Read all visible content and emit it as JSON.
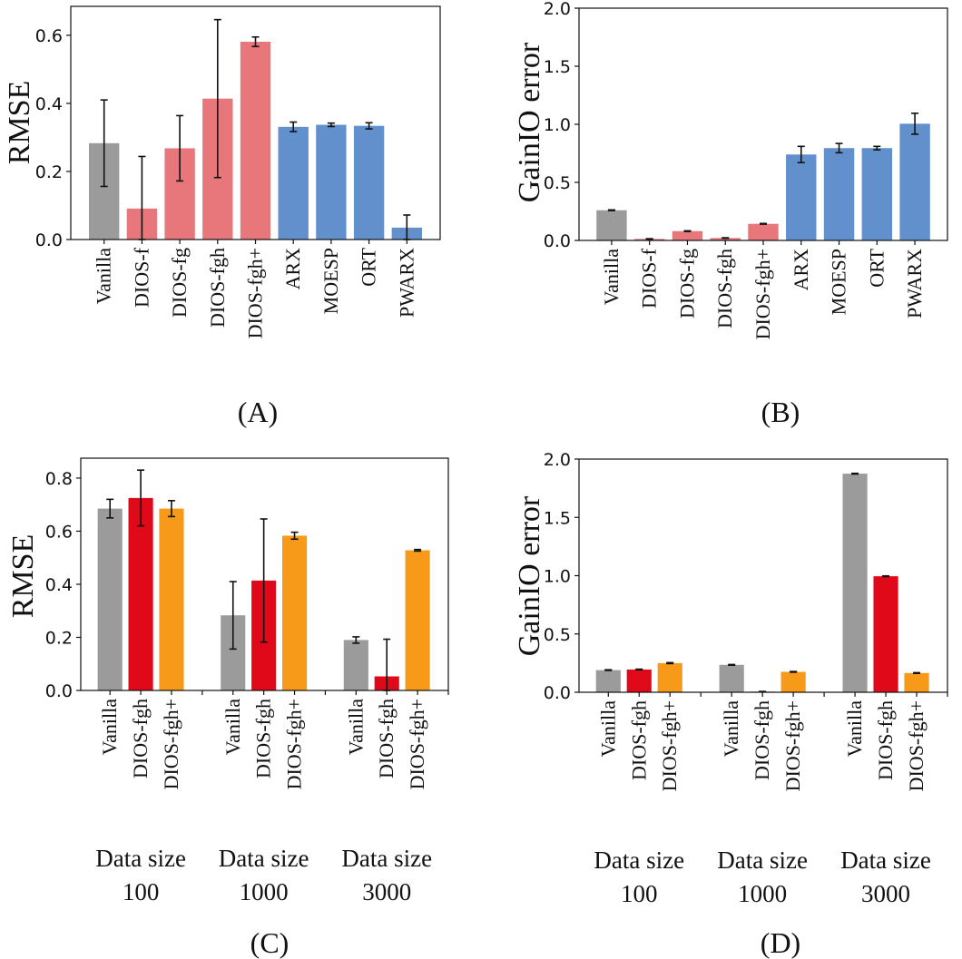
{
  "colors": {
    "vanilla": "#9b9b9b",
    "dios_light": "#e8777c",
    "baseline": "#6190cc",
    "dios_fgh": "#e0091a",
    "dios_fgh_plus": "#f79a1a"
  },
  "chart_data": [
    {
      "type": "bar",
      "panel_label": "(A)",
      "ylabel": "RMSE",
      "ylim": [
        0,
        0.685
      ],
      "yticks": [
        "0.0",
        "0.2",
        "0.4",
        "0.6"
      ],
      "categories": [
        "Vanilla",
        "DIOS-f",
        "DIOS-fg",
        "DIOS-fgh",
        "DIOS-fgh+",
        "ARX",
        "MOESP",
        "ORT",
        "PWARX"
      ],
      "values": [
        0.283,
        0.091,
        0.268,
        0.414,
        0.581,
        0.331,
        0.337,
        0.334,
        0.035
      ],
      "errors": [
        0.127,
        0.153,
        0.096,
        0.232,
        0.014,
        0.014,
        0.005,
        0.009,
        0.037
      ],
      "bar_colors": [
        "vanilla",
        "dios_light",
        "dios_light",
        "dios_light",
        "dios_light",
        "baseline",
        "baseline",
        "baseline",
        "baseline"
      ],
      "grid": false
    },
    {
      "type": "bar",
      "panel_label": "(B)",
      "ylabel": "GainIO error",
      "ylim": [
        0,
        2.0
      ],
      "yticks": [
        "0.0",
        "0.5",
        "1.0",
        "1.5",
        "2.0"
      ],
      "categories": [
        "Vanilla",
        "DIOS-f",
        "DIOS-fg",
        "DIOS-fgh",
        "DIOS-fgh+",
        "ARX",
        "MOESP",
        "ORT",
        "PWARX"
      ],
      "values": [
        0.26,
        0.013,
        0.08,
        0.021,
        0.143,
        0.74,
        0.795,
        0.795,
        1.005
      ],
      "errors": [
        0.003,
        0.002,
        0.003,
        0.002,
        0.003,
        0.07,
        0.04,
        0.015,
        0.09
      ],
      "bar_colors": [
        "vanilla",
        "dios_light",
        "dios_light",
        "dios_light",
        "dios_light",
        "baseline",
        "baseline",
        "baseline",
        "baseline"
      ],
      "grid": false
    },
    {
      "type": "bar",
      "panel_label": "(C)",
      "ylabel": "RMSE",
      "ylim": [
        0,
        0.875
      ],
      "yticks": [
        "0.0",
        "0.2",
        "0.4",
        "0.6",
        "0.8"
      ],
      "groups": [
        {
          "line1": "Data size",
          "line2": "100",
          "categories": [
            "Vanilla",
            "DIOS-fgh",
            "DIOS-fgh+"
          ],
          "values": [
            0.685,
            0.725,
            0.685
          ],
          "errors": [
            0.035,
            0.105,
            0.03
          ]
        },
        {
          "line1": "Data size",
          "line2": "1000",
          "categories": [
            "Vanilla",
            "DIOS-fgh",
            "DIOS-fgh+"
          ],
          "values": [
            0.283,
            0.414,
            0.583
          ],
          "errors": [
            0.127,
            0.232,
            0.013
          ]
        },
        {
          "line1": "Data size",
          "line2": "3000",
          "categories": [
            "Vanilla",
            "DIOS-fgh",
            "DIOS-fgh+"
          ],
          "values": [
            0.19,
            0.053,
            0.528
          ],
          "errors": [
            0.012,
            0.14,
            0.003
          ]
        }
      ],
      "bar_colors": [
        "vanilla",
        "dios_fgh",
        "dios_fgh_plus"
      ],
      "grid": false
    },
    {
      "type": "bar",
      "panel_label": "(D)",
      "ylabel": "GainIO error",
      "ylim": [
        0,
        2.0
      ],
      "yticks": [
        "0.0",
        "0.5",
        "1.0",
        "1.5",
        "2.0"
      ],
      "groups": [
        {
          "line1": "Data size",
          "line2": "100",
          "categories": [
            "Vanilla",
            "DIOS-fgh",
            "DIOS-fgh+"
          ],
          "values": [
            0.19,
            0.195,
            0.25
          ],
          "errors": [
            0.003,
            0.003,
            0.004
          ]
        },
        {
          "line1": "Data size",
          "line2": "1000",
          "categories": [
            "Vanilla",
            "DIOS-fgh",
            "DIOS-fgh+"
          ],
          "values": [
            0.235,
            0.005,
            0.175
          ],
          "errors": [
            0.003,
            0.002,
            0.003
          ]
        },
        {
          "line1": "Data size",
          "line2": "3000",
          "categories": [
            "Vanilla",
            "DIOS-fgh",
            "DIOS-fgh+"
          ],
          "values": [
            1.875,
            0.995,
            0.165
          ],
          "errors": [
            0.003,
            0.003,
            0.003
          ]
        }
      ],
      "bar_colors": [
        "vanilla",
        "dios_fgh",
        "dios_fgh_plus"
      ],
      "grid": false
    }
  ]
}
